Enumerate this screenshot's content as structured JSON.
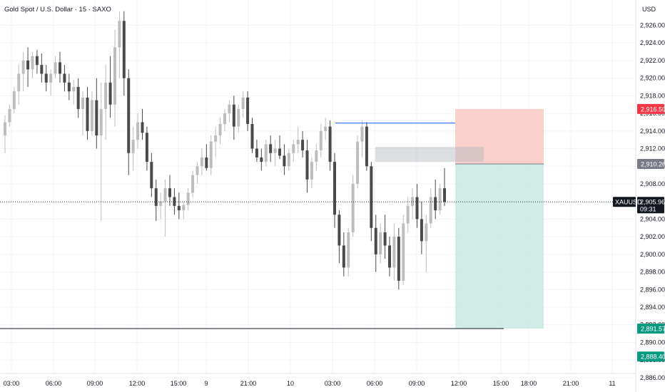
{
  "title": "Gold Spot / U.S. Dollar · 15 · SAXO",
  "currency": "USD",
  "colors": {
    "candle_up": "#bdbdbd",
    "candle_down": "#4a4a4a",
    "stop_zone": "#f9c8c3",
    "target_zone": "#c9e8e3",
    "entry_line": "#2962ff",
    "tag_stop": "#f23645",
    "tag_entry": "#787b86",
    "tag_target": "#089981",
    "tag_current": "#131722"
  },
  "price_tags": {
    "stop": "2,916.50",
    "entry": "2,910.26",
    "target": "2,891.57",
    "extra": "2,888.40",
    "current_symbol": "XAUUSD",
    "current_price": "2,905.96",
    "countdown": "09:31"
  },
  "chart_data": {
    "type": "candlestick",
    "title": "Gold Spot / U.S. Dollar · 15 · SAXO",
    "y_unit": "USD",
    "ylim": [
      2885.8,
      2927.6
    ],
    "y_ticks": [
      "2,926.00",
      "2,924.00",
      "2,922.00",
      "2,920.00",
      "2,918.00",
      "2,916.00",
      "2,914.00",
      "2,912.00",
      "2,910.00",
      "2,908.00",
      "2,906.00",
      "2,904.00",
      "2,902.00",
      "2,900.00",
      "2,898.00",
      "2,896.00",
      "2,894.00",
      "2,892.00",
      "2,890.00",
      "2,888.00",
      "2,886.00"
    ],
    "x_ticks": [
      "03:00",
      "06:00",
      "09:00",
      "12:00",
      "15:00",
      "9",
      "21:00",
      "10",
      "03:00",
      "06:00",
      "09:00",
      "12:00",
      "15:00",
      "18:00",
      "21:00",
      "11"
    ],
    "grid": true,
    "ohlc": [
      [
        2913.5,
        2915.8,
        2911.5,
        2915.0
      ],
      [
        2915.0,
        2917.0,
        2914.5,
        2916.5
      ],
      [
        2916.5,
        2919.0,
        2916.0,
        2918.5
      ],
      [
        2918.5,
        2921.5,
        2917.0,
        2920.5
      ],
      [
        2920.5,
        2923.0,
        2918.5,
        2922.0
      ],
      [
        2922.0,
        2923.5,
        2919.0,
        2921.0
      ],
      [
        2921.0,
        2923.0,
        2920.0,
        2922.5
      ],
      [
        2922.5,
        2923.2,
        2920.5,
        2921.5
      ],
      [
        2921.5,
        2922.8,
        2919.5,
        2920.5
      ],
      [
        2920.5,
        2921.5,
        2918.5,
        2919.5
      ],
      [
        2919.5,
        2921.0,
        2918.0,
        2920.5
      ],
      [
        2920.5,
        2922.5,
        2920.0,
        2921.8
      ],
      [
        2921.8,
        2923.0,
        2919.5,
        2920.5
      ],
      [
        2920.5,
        2921.5,
        2918.5,
        2919.5
      ],
      [
        2919.5,
        2920.5,
        2917.5,
        2918.5
      ],
      [
        2918.5,
        2919.8,
        2917.0,
        2919.0
      ],
      [
        2919.0,
        2920.0,
        2915.5,
        2916.5
      ],
      [
        2916.5,
        2918.5,
        2913.5,
        2917.8
      ],
      [
        2917.8,
        2919.0,
        2913.0,
        2914.0
      ],
      [
        2914.0,
        2918.5,
        2913.5,
        2917.5
      ],
      [
        2917.5,
        2920.0,
        2912.0,
        2913.5
      ],
      [
        2913.5,
        2919.5,
        2903.8,
        2916.5
      ],
      [
        2916.5,
        2921.5,
        2913.0,
        2919.5
      ],
      [
        2919.5,
        2922.5,
        2915.5,
        2917.0
      ],
      [
        2917.0,
        2925.5,
        2914.5,
        2923.5
      ],
      [
        2923.5,
        2927.6,
        2920.0,
        2926.5
      ],
      [
        2926.5,
        2927.6,
        2918.0,
        2920.0
      ],
      [
        2920.0,
        2921.0,
        2909.0,
        2911.5
      ],
      [
        2911.5,
        2914.5,
        2909.5,
        2913.0
      ],
      [
        2913.0,
        2916.0,
        2912.0,
        2915.0
      ],
      [
        2915.0,
        2916.5,
        2913.0,
        2913.8
      ],
      [
        2913.8,
        2914.5,
        2909.5,
        2910.5
      ],
      [
        2910.5,
        2911.5,
        2906.5,
        2907.5
      ],
      [
        2907.5,
        2908.5,
        2903.8,
        2905.5
      ],
      [
        2905.5,
        2907.0,
        2904.0,
        2906.0
      ],
      [
        2906.0,
        2908.5,
        2902.0,
        2907.5
      ],
      [
        2907.5,
        2909.0,
        2905.5,
        2906.5
      ],
      [
        2906.5,
        2907.5,
        2904.5,
        2905.5
      ],
      [
        2905.5,
        2907.0,
        2904.0,
        2905.0
      ],
      [
        2905.0,
        2906.0,
        2904.0,
        2905.6
      ],
      [
        2905.6,
        2907.5,
        2905.0,
        2907.0
      ],
      [
        2907.0,
        2909.5,
        2906.5,
        2909.0
      ],
      [
        2909.0,
        2910.5,
        2908.0,
        2910.0
      ],
      [
        2910.0,
        2912.0,
        2909.0,
        2911.0
      ],
      [
        2911.0,
        2912.5,
        2909.5,
        2909.8
      ],
      [
        2909.8,
        2913.5,
        2909.0,
        2912.8
      ],
      [
        2912.8,
        2914.5,
        2911.0,
        2913.5
      ],
      [
        2913.5,
        2915.5,
        2912.5,
        2914.8
      ],
      [
        2914.8,
        2916.5,
        2914.0,
        2916.0
      ],
      [
        2916.0,
        2917.5,
        2915.0,
        2917.0
      ],
      [
        2917.0,
        2918.0,
        2913.0,
        2914.5
      ],
      [
        2914.5,
        2917.0,
        2913.8,
        2916.5
      ],
      [
        2916.5,
        2918.5,
        2915.5,
        2917.8
      ],
      [
        2917.8,
        2918.5,
        2914.0,
        2914.8
      ],
      [
        2914.8,
        2915.5,
        2911.5,
        2912.0
      ],
      [
        2912.0,
        2913.0,
        2910.5,
        2911.0
      ],
      [
        2911.0,
        2912.0,
        2909.5,
        2910.5
      ],
      [
        2910.5,
        2913.0,
        2910.0,
        2912.5
      ],
      [
        2912.5,
        2913.5,
        2910.5,
        2911.5
      ],
      [
        2911.5,
        2913.0,
        2910.0,
        2912.0
      ],
      [
        2912.0,
        2913.5,
        2910.8,
        2911.2
      ],
      [
        2911.2,
        2912.5,
        2909.0,
        2910.0
      ],
      [
        2910.0,
        2912.0,
        2909.5,
        2911.5
      ],
      [
        2911.5,
        2913.0,
        2910.5,
        2912.5
      ],
      [
        2912.5,
        2914.5,
        2911.5,
        2913.0
      ],
      [
        2913.0,
        2914.0,
        2911.0,
        2911.8
      ],
      [
        2911.8,
        2913.0,
        2907.0,
        2908.5
      ],
      [
        2908.5,
        2911.0,
        2907.5,
        2910.5
      ],
      [
        2910.5,
        2912.5,
        2909.5,
        2911.8
      ],
      [
        2911.8,
        2914.8,
        2911.0,
        2914.0
      ],
      [
        2914.0,
        2915.5,
        2913.0,
        2914.5
      ],
      [
        2914.5,
        2915.2,
        2909.5,
        2910.5
      ],
      [
        2910.5,
        2911.5,
        2903.0,
        2904.5
      ],
      [
        2904.5,
        2905.0,
        2899.0,
        2901.0
      ],
      [
        2901.0,
        2902.5,
        2897.5,
        2898.5
      ],
      [
        2898.5,
        2903.0,
        2897.5,
        2902.5
      ],
      [
        2902.5,
        2909.0,
        2902.0,
        2908.0
      ],
      [
        2908.0,
        2913.5,
        2907.5,
        2912.8
      ],
      [
        2912.8,
        2915.2,
        2911.0,
        2914.5
      ],
      [
        2914.5,
        2915.0,
        2909.5,
        2910.0
      ],
      [
        2910.0,
        2910.5,
        2901.5,
        2903.0
      ],
      [
        2903.0,
        2904.5,
        2898.0,
        2900.0
      ],
      [
        2900.0,
        2903.5,
        2899.0,
        2902.5
      ],
      [
        2902.5,
        2904.5,
        2899.5,
        2901.0
      ],
      [
        2901.0,
        2902.0,
        2897.5,
        2898.5
      ],
      [
        2898.5,
        2903.5,
        2897.0,
        2902.0
      ],
      [
        2902.0,
        2903.0,
        2896.0,
        2897.0
      ],
      [
        2897.0,
        2904.5,
        2896.5,
        2903.5
      ],
      [
        2903.5,
        2906.5,
        2902.5,
        2905.5
      ],
      [
        2905.5,
        2907.5,
        2904.0,
        2906.5
      ],
      [
        2906.5,
        2908.0,
        2903.0,
        2904.0
      ],
      [
        2904.0,
        2906.0,
        2900.0,
        2901.5
      ],
      [
        2901.5,
        2904.5,
        2898.0,
        2903.5
      ],
      [
        2903.5,
        2907.5,
        2903.0,
        2906.5
      ],
      [
        2906.5,
        2908.5,
        2904.0,
        2905.0
      ],
      [
        2905.0,
        2908.0,
        2904.5,
        2907.5
      ],
      [
        2907.5,
        2909.8,
        2905.5,
        2905.96
      ]
    ]
  }
}
